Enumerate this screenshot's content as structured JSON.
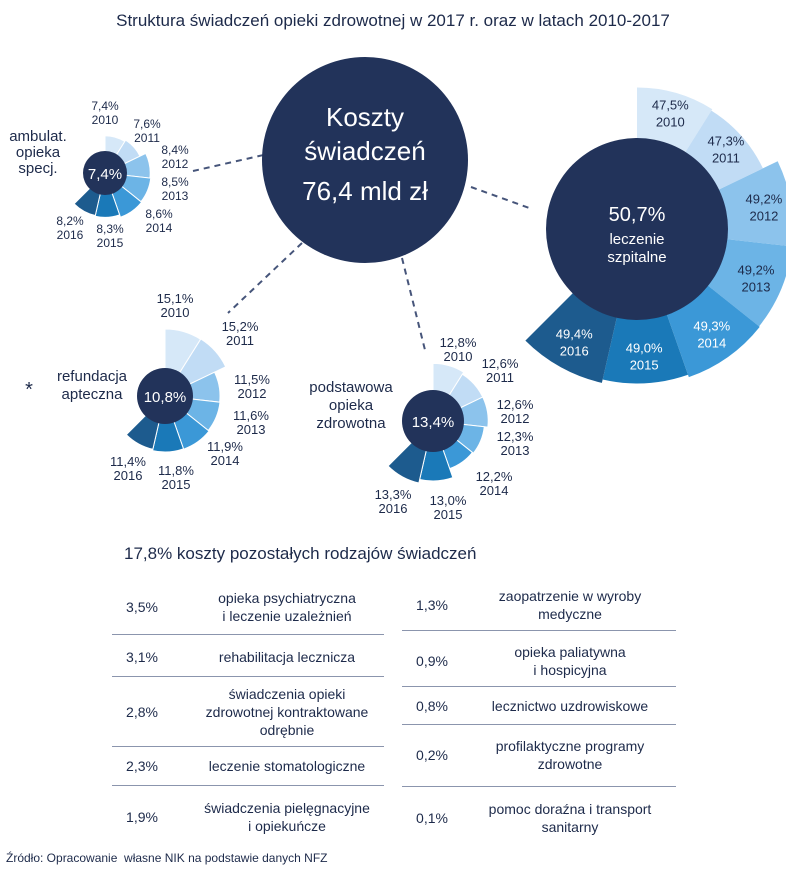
{
  "title": "Struktura świadczeń opieki zdrowotnej w 2017 r. oraz w latach 2010-2017",
  "center": {
    "line1": "Koszty",
    "line2": "świadczeń",
    "line3": "76,4 mld zł"
  },
  "chart_data": [
    {
      "type": "pie",
      "name": "leczenie szpitalne",
      "center_value": "50,7%",
      "center_label_1": "leczenie",
      "center_label_2": "szpitalne",
      "categories": [
        "2010",
        "2011",
        "2012",
        "2013",
        "2014",
        "2015",
        "2016"
      ],
      "values": [
        47.5,
        47.3,
        49.2,
        49.2,
        49.3,
        49.0,
        49.4
      ],
      "labels": [
        "47,5%",
        "47,3%",
        "49,2%",
        "49,2%",
        "49,3%",
        "49,0%",
        "49,4%"
      ]
    },
    {
      "type": "pie",
      "name": "ambulat. opieka specj.",
      "title_lines": [
        "ambulat.",
        "opieka",
        "specj."
      ],
      "center_value": "7,4%",
      "categories": [
        "2010",
        "2011",
        "2012",
        "2013",
        "2014",
        "2015",
        "2016"
      ],
      "values": [
        7.4,
        7.6,
        8.4,
        8.5,
        8.6,
        8.3,
        8.2
      ],
      "labels": [
        "7,4%",
        "7,6%",
        "8,4%",
        "8,5%",
        "8,6%",
        "8,3%",
        "8,2%"
      ]
    },
    {
      "type": "pie",
      "name": "refundacja apteczna",
      "title_lines": [
        "refundacja",
        "apteczna"
      ],
      "marker": "*",
      "center_value": "10,8%",
      "categories": [
        "2010",
        "2011",
        "2012",
        "2013",
        "2014",
        "2015",
        "2016"
      ],
      "values": [
        15.1,
        15.2,
        11.5,
        11.6,
        11.9,
        11.8,
        11.4
      ],
      "labels": [
        "15,1%",
        "15,2%",
        "11,5%",
        "11,6%",
        "11,9%",
        "11,8%",
        "11,4%"
      ]
    },
    {
      "type": "pie",
      "name": "podstawowa opieka zdrowotna",
      "title_lines": [
        "podstawowa",
        "opieka",
        "zdrowotna"
      ],
      "center_value": "13,4%",
      "categories": [
        "2010",
        "2011",
        "2012",
        "2013",
        "2014",
        "2015",
        "2016"
      ],
      "values": [
        12.8,
        12.6,
        12.6,
        12.3,
        12.2,
        13.0,
        13.3
      ],
      "labels": [
        "12,8%",
        "12,6%",
        "12,6%",
        "12,3%",
        "12,2%",
        "13,0%",
        "13,3%"
      ]
    }
  ],
  "other": {
    "heading": "17,8% koszty pozostałych rodzajów świadczeń",
    "left": [
      {
        "pct": "3,5%",
        "lines": [
          "opieka psychiatryczna",
          "i leczenie uzależnień"
        ]
      },
      {
        "pct": "3,1%",
        "lines": [
          "rehabilitacja lecznicza"
        ]
      },
      {
        "pct": "2,8%",
        "lines": [
          "świadczenia opieki",
          "zdrowotnej kontraktowane",
          "odrębnie"
        ]
      },
      {
        "pct": "2,3%",
        "lines": [
          "leczenie stomatologiczne"
        ]
      },
      {
        "pct": "1,9%",
        "lines": [
          "świadczenia pielęgnacyjne",
          "i opiekuńcze"
        ]
      }
    ],
    "right": [
      {
        "pct": "1,3%",
        "lines": [
          "zaopatrzenie w wyroby",
          "medyczne"
        ]
      },
      {
        "pct": "0,9%",
        "lines": [
          "opieka paliatywna",
          "i hospicyjna"
        ]
      },
      {
        "pct": "0,8%",
        "lines": [
          "lecznictwo uzdrowiskowe"
        ]
      },
      {
        "pct": "0,2%",
        "lines": [
          "profilaktyczne programy",
          "zdrowotne"
        ]
      },
      {
        "pct": "0,1%",
        "lines": [
          "pomoc doraźna i transport",
          "sanitarny"
        ]
      }
    ]
  },
  "source": "Źródło: Opracowanie  własne NIK na podstawie danych NFZ",
  "colors": {
    "navy": "#22335a",
    "shades": [
      "#d6e8f8",
      "#c1dcf5",
      "#8cc3ec",
      "#6cb4e6",
      "#3b98d7",
      "#1a79b8",
      "#1d5b8e"
    ],
    "rule": "#8b95ad"
  }
}
